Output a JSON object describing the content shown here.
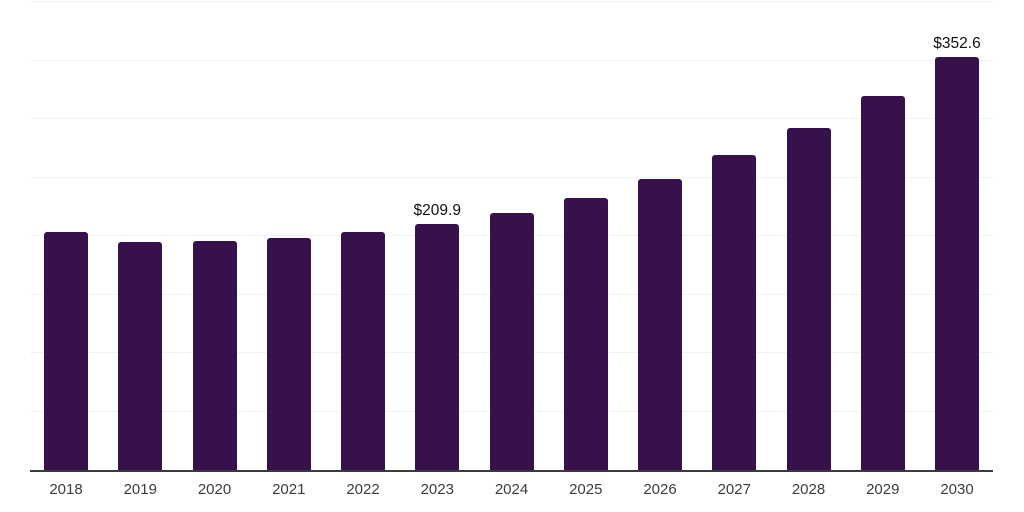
{
  "page": {
    "background_color": "#ffffff"
  },
  "chart_data": {
    "type": "bar",
    "title": "",
    "xlabel": "",
    "ylabel": "",
    "categories": [
      "2018",
      "2019",
      "2020",
      "2021",
      "2022",
      "2023",
      "2024",
      "2025",
      "2026",
      "2027",
      "2028",
      "2029",
      "2030"
    ],
    "values": [
      203.5,
      195.0,
      195.8,
      198.4,
      203.5,
      209.9,
      219.7,
      232.5,
      248.6,
      269.1,
      292.1,
      319.3,
      352.6
    ],
    "point_labels": [
      "",
      "",
      "",
      "",
      "",
      "$209.9",
      "",
      "",
      "",
      "",
      "",
      "",
      "$352.6"
    ],
    "currency_prefix": "$",
    "ylim": [
      0,
      400
    ],
    "gridline_step": 50,
    "grid": "horizontal",
    "legend_position": "none",
    "y_tick_labels_visible": false,
    "colors": {
      "bar": "#36114c",
      "gridline": "#f1f1f1",
      "axis_line": "#3a3a3a",
      "tick_label": "#3d3d3d",
      "value_label": "#111111"
    }
  }
}
